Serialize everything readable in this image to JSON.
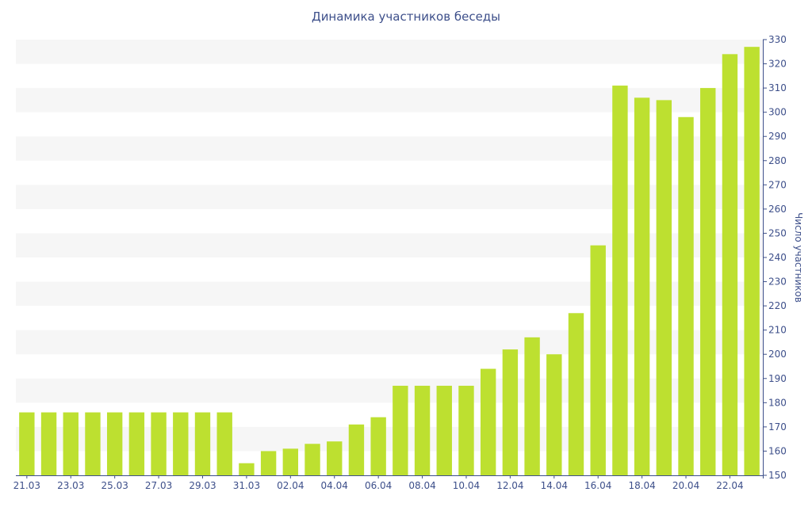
{
  "chart_data": {
    "type": "bar",
    "title": "Динамика участников беседы",
    "xlabel": "",
    "ylabel": "Число участников",
    "y_axis_side": "right",
    "ylim": [
      150,
      330
    ],
    "yticks": [
      150,
      160,
      170,
      180,
      190,
      200,
      210,
      220,
      230,
      240,
      250,
      260,
      270,
      280,
      290,
      300,
      310,
      320,
      330
    ],
    "grid": "alternating horizontal bands",
    "categories": [
      "21.03",
      "22.03",
      "23.03",
      "24.03",
      "25.03",
      "26.03",
      "27.03",
      "28.03",
      "29.03",
      "30.03",
      "31.03",
      "01.04",
      "02.04",
      "03.04",
      "04.04",
      "05.04",
      "06.04",
      "07.04",
      "08.04",
      "09.04",
      "10.04",
      "11.04",
      "12.04",
      "13.04",
      "14.04",
      "15.04",
      "16.04",
      "17.04",
      "18.04",
      "19.04",
      "20.04",
      "21.04",
      "22.04",
      "23.04"
    ],
    "xtick_labels": [
      "21.03",
      "23.03",
      "25.03",
      "27.03",
      "29.03",
      "31.03",
      "02.04",
      "04.04",
      "06.04",
      "08.04",
      "10.04",
      "12.04",
      "14.04",
      "16.04",
      "18.04",
      "20.04",
      "22.04"
    ],
    "values": [
      176,
      176,
      176,
      176,
      176,
      176,
      176,
      176,
      176,
      176,
      155,
      160,
      161,
      163,
      164,
      171,
      174,
      187,
      187,
      187,
      187,
      194,
      202,
      207,
      200,
      217,
      245,
      311,
      306,
      305,
      298,
      310,
      324,
      327
    ],
    "colors": {
      "bar": "#bde030",
      "band": "#f6f6f6",
      "text": "#3d4f8a",
      "axis": "#3d4f8a"
    }
  }
}
